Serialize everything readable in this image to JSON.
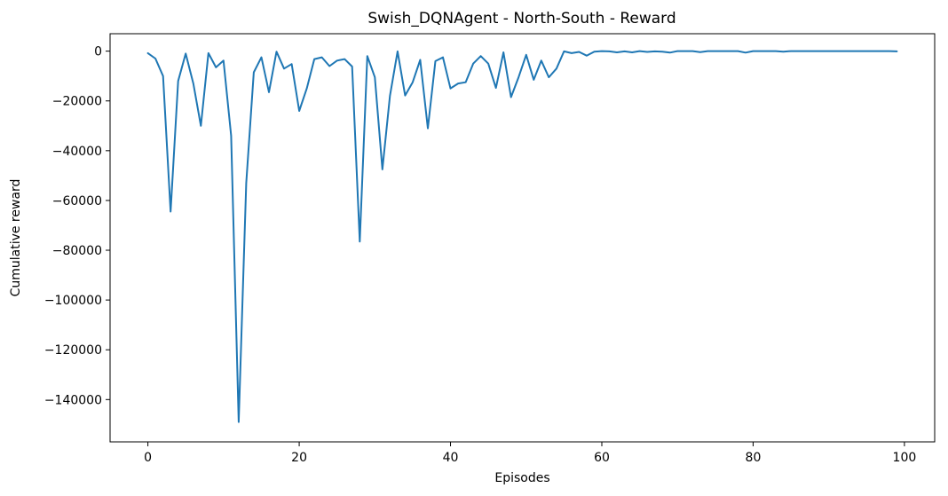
{
  "chart_data": {
    "type": "line",
    "title": "Swish_DQNAgent - North-South - Reward",
    "xlabel": "Episodes",
    "ylabel": "Cumulative reward",
    "xlim": [
      -5,
      104
    ],
    "ylim": [
      -157000,
      7000
    ],
    "xticks": [
      0,
      20,
      40,
      60,
      80,
      100
    ],
    "yticks": [
      0,
      -20000,
      -40000,
      -60000,
      -80000,
      -100000,
      -120000,
      -140000
    ],
    "grid": false,
    "legend": "none",
    "line_color": "#1f77b4",
    "series": [
      {
        "x": [
          0,
          1,
          2,
          3,
          4,
          5,
          6,
          7,
          8,
          9,
          10,
          11,
          12,
          13,
          14,
          15,
          16,
          17,
          18,
          19,
          20,
          21,
          22,
          23,
          24,
          25,
          26,
          27,
          28,
          29,
          30,
          31,
          32,
          33,
          34,
          35,
          36,
          37,
          38,
          39,
          40,
          41,
          42,
          43,
          44,
          45,
          46,
          47,
          48,
          49,
          50,
          51,
          52,
          53,
          54,
          55,
          56,
          57,
          58,
          59,
          60,
          61,
          62,
          63,
          64,
          65,
          66,
          67,
          68,
          69,
          70,
          71,
          72,
          73,
          74,
          75,
          76,
          77,
          78,
          79,
          80,
          81,
          82,
          83,
          84,
          85,
          86,
          87,
          88,
          89,
          90,
          91,
          92,
          93,
          94,
          95,
          96,
          97,
          98,
          99
        ],
        "y": [
          -800,
          -3000,
          -10000,
          -64500,
          -12000,
          -1000,
          -13000,
          -30000,
          -800,
          -6500,
          -3800,
          -34000,
          -149000,
          -53000,
          -8500,
          -2500,
          -16500,
          -200,
          -7000,
          -5200,
          -24000,
          -15000,
          -3200,
          -2500,
          -6000,
          -3800,
          -3200,
          -6200,
          -76500,
          -2000,
          -10500,
          -47500,
          -18000,
          -100,
          -17800,
          -12500,
          -3500,
          -31000,
          -4000,
          -2500,
          -15000,
          -13000,
          -12500,
          -5000,
          -2000,
          -5000,
          -14800,
          -500,
          -18500,
          -10500,
          -1500,
          -11500,
          -3800,
          -10500,
          -7000,
          -100,
          -800,
          -300,
          -1800,
          -200,
          0,
          -100,
          -500,
          -100,
          -500,
          0,
          -300,
          -100,
          -200,
          -600,
          0,
          0,
          0,
          -400,
          0,
          0,
          0,
          0,
          0,
          -600,
          0,
          0,
          0,
          0,
          -200,
          0,
          0,
          0,
          0,
          0,
          0,
          0,
          0,
          0,
          0,
          0,
          0,
          0,
          0,
          -100
        ]
      }
    ]
  }
}
